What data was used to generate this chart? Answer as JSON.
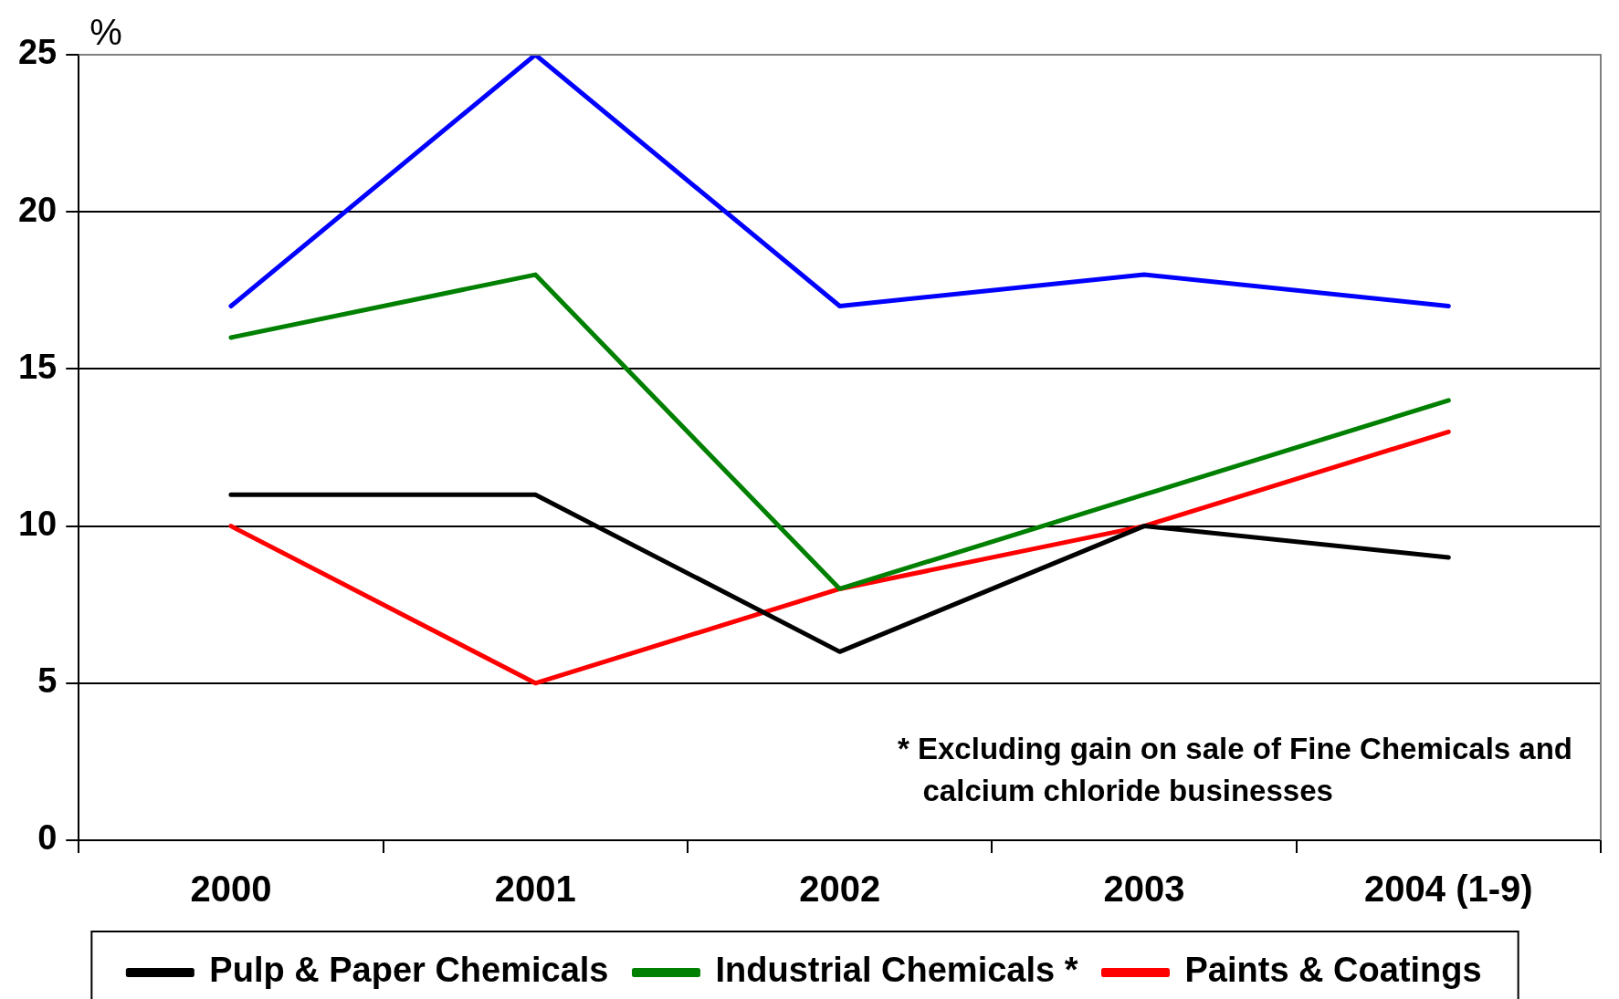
{
  "chart_data": {
    "type": "line",
    "ylabel": "%",
    "categories": [
      "2000",
      "2001",
      "2002",
      "2003",
      "2004 (1-9)"
    ],
    "series": [
      {
        "name": "Pulp & Paper Chemicals",
        "color": "#000000",
        "values": [
          11,
          11,
          6,
          10,
          9
        ]
      },
      {
        "color": "#0000ff",
        "values": [
          17,
          25,
          17,
          18,
          17
        ]
      },
      {
        "name": "Industrial Chemicals *",
        "color": "#008000",
        "values": [
          16,
          18,
          8,
          11,
          14
        ]
      },
      {
        "name": "Paints & Coatings",
        "color": "#ff0000",
        "values": [
          10,
          5,
          8,
          10,
          13
        ]
      }
    ],
    "ylim": [
      0,
      25
    ],
    "yticks": [
      0,
      5,
      10,
      15,
      20,
      25
    ],
    "grid": "y",
    "legend": "bottom",
    "marker": "none",
    "line_style": "solid",
    "annotations": [
      "* Excluding gain on sale of Fine Chemicals and calcium chloride businesses"
    ]
  }
}
